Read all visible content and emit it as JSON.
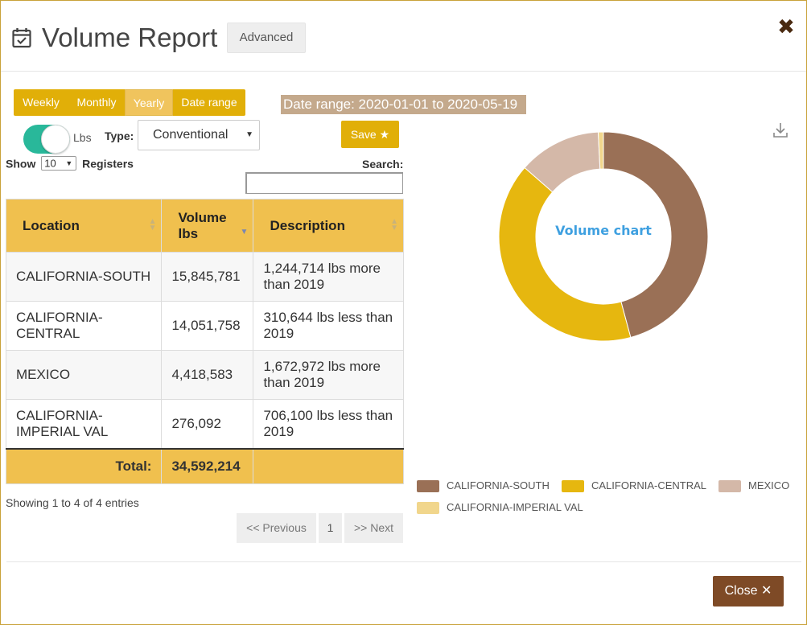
{
  "header": {
    "title": "Volume Report",
    "advanced_label": "Advanced",
    "close_symbol": "✖"
  },
  "filters": {
    "periods": [
      "Weekly",
      "Monthly",
      "Yearly",
      "Date range"
    ],
    "active_period": "Yearly",
    "date_range_text": "Date range: 2020-01-01 to 2020-05-19",
    "unit_label": "Lbs",
    "unit_toggle_on": true,
    "type_label": "Type:",
    "type_value": "Conventional",
    "save_label": "Save ★"
  },
  "table_controls": {
    "show_label": "Show",
    "show_value": "10",
    "registers_label": "Registers",
    "search_label": "Search:",
    "search_value": ""
  },
  "table": {
    "headers": [
      "Location",
      "Volume lbs",
      "Description"
    ],
    "rows": [
      {
        "location": "CALIFORNIA-SOUTH",
        "volume": "15,845,781",
        "description": "1,244,714 lbs more than 2019"
      },
      {
        "location": "CALIFORNIA-CENTRAL",
        "volume": "14,051,758",
        "description": "310,644 lbs less than 2019"
      },
      {
        "location": "MEXICO",
        "volume": "4,418,583",
        "description": "1,672,972 lbs more than 2019"
      },
      {
        "location": "CALIFORNIA-IMPERIAL VAL",
        "volume": "276,092",
        "description": "706,100 lbs less than 2019"
      }
    ],
    "total_label": "Total:",
    "total_value": "34,592,214"
  },
  "pagination": {
    "showing_text": "Showing 1 to 4 of 4 entries",
    "previous_label": "<< Previous",
    "page": "1",
    "next_label": ">> Next"
  },
  "chart_data": {
    "type": "pie",
    "title": "Volume chart",
    "categories": [
      "CALIFORNIA-SOUTH",
      "CALIFORNIA-CENTRAL",
      "MEXICO",
      "CALIFORNIA-IMPERIAL VAL"
    ],
    "values": [
      15845781,
      14051758,
      4418583,
      276092
    ],
    "colors": [
      "#9a7056",
      "#e6b70f",
      "#d4b8a8",
      "#f1d68c"
    ],
    "legend_position": "bottom"
  },
  "footer": {
    "close_label": "Close ✕"
  },
  "colors": {
    "accent": "#e1af08",
    "table_header": "#f0c04e",
    "date_range_bg": "#c4a98c",
    "close_button": "#7e4a26",
    "toggle": "#29b89a"
  },
  "icons": {
    "title": "calendar-check-icon",
    "download": "download-icon"
  }
}
